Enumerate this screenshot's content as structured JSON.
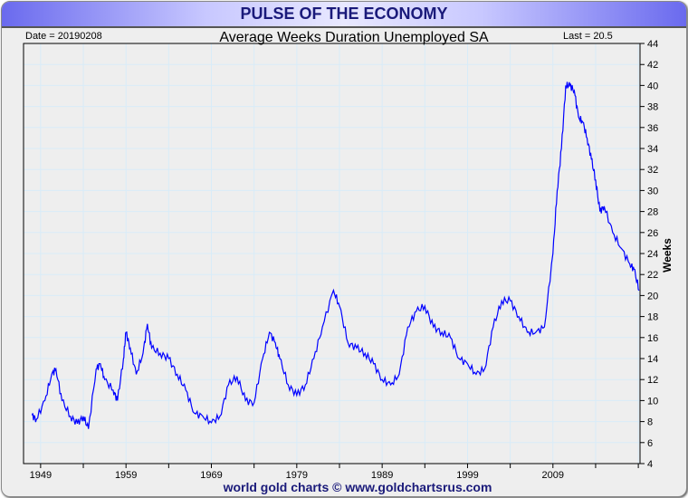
{
  "header": {
    "title": "PULSE OF THE ECONOMY"
  },
  "chart_data": {
    "type": "line",
    "title": "Average Weeks Duration Unemployed SA",
    "date_label": "Date = 20190208",
    "last_label": "Last = 20.5",
    "ylabel": "Weeks",
    "xlabel": "",
    "ylim": [
      4,
      44
    ],
    "xlim": [
      1947,
      2019.2
    ],
    "yticks": [
      4,
      6,
      8,
      10,
      12,
      14,
      16,
      18,
      20,
      22,
      24,
      26,
      28,
      30,
      32,
      34,
      36,
      38,
      40,
      42,
      44
    ],
    "xticks": [
      "1949",
      "1959",
      "1969",
      "1979",
      "1989",
      "1999",
      "2009"
    ],
    "grid": true,
    "series": [
      {
        "name": "Average Weeks Duration Unemployed SA",
        "color": "#0000ff",
        "x": [
          1948.0,
          1948.5,
          1949.5,
          1950.3,
          1950.8,
          1951.5,
          1952.5,
          1953.3,
          1954,
          1954.6,
          1955.5,
          1956,
          1956.5,
          1957.5,
          1958,
          1958.7,
          1959,
          1959.5,
          1960.2,
          1961,
          1961.5,
          1962,
          1963,
          1964,
          1965,
          1966,
          1967,
          1968,
          1969,
          1970,
          1971,
          1972,
          1973,
          1974,
          1975,
          1975.8,
          1976.5,
          1977,
          1978,
          1979,
          1980,
          1981,
          1982,
          1983.3,
          1984,
          1985,
          1986,
          1987,
          1988,
          1989,
          1990,
          1991,
          1992,
          1993,
          1994,
          1995,
          1996,
          1997,
          1998,
          1999,
          2000,
          2001,
          2002,
          2003,
          2004,
          2005,
          2006,
          2007,
          2008,
          2009,
          2009.5,
          2010,
          2010.5,
          2011,
          2011.5,
          2012,
          2012.5,
          2013,
          2013.5,
          2014,
          2014.5,
          2015,
          2016,
          2017,
          2018,
          2018.5,
          2019.1
        ],
        "y": [
          8.6,
          8.2,
          10,
          12.5,
          13,
          10,
          8.5,
          7.8,
          8.5,
          7.3,
          13,
          13.5,
          12,
          11,
          10,
          14,
          16.5,
          15,
          12.5,
          14.5,
          17.3,
          15,
          14.5,
          14,
          12.5,
          11,
          8.8,
          8.5,
          7.9,
          8.5,
          11.5,
          12.3,
          10,
          9.8,
          14,
          16.5,
          15.5,
          14,
          11.5,
          10.5,
          11.5,
          14,
          17,
          20.5,
          19,
          15.5,
          15,
          14.5,
          13.5,
          12,
          11.5,
          12.5,
          17,
          18.5,
          19,
          17,
          16.5,
          16,
          14,
          13.5,
          12.5,
          13,
          17,
          19.5,
          19.5,
          18,
          16.5,
          16.5,
          17,
          24,
          30,
          34,
          40,
          40,
          39.5,
          37,
          36.5,
          35,
          33,
          31,
          28,
          28.5,
          26,
          24.5,
          23,
          22.5,
          20.5
        ]
      }
    ]
  },
  "footer": {
    "credit": "world gold charts © www.goldchartsrus.com"
  },
  "colors": {
    "line": "#0000ff",
    "grid": "#d8ecf8",
    "title": "#1a1a7a"
  }
}
